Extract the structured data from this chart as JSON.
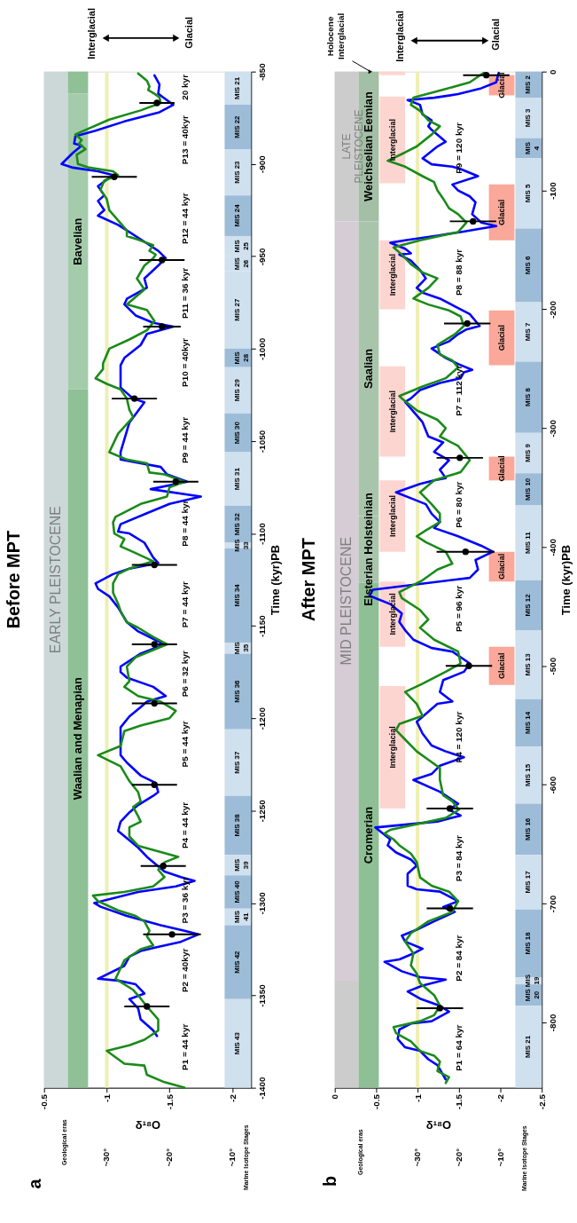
{
  "chart_data": [
    {
      "type": "line",
      "title": "Before MPT",
      "xlabel": "δ¹⁸O",
      "ylabel": "Time (kyr)PB",
      "ylim": [
        -1400,
        -850
      ],
      "yticks": [
        -1400,
        -1350,
        -1300,
        -1250,
        -1200,
        -1150,
        -1100,
        -1050,
        -1000,
        -950,
        -900,
        -850
      ],
      "xlim": [
        -0.5,
        -2.15
      ],
      "xticks": [
        -2,
        -1.5,
        -1,
        -0.5
      ],
      "x2lim": [
        40,
        7
      ],
      "x2ticks": [
        {
          "value": 10,
          "label": "~10°"
        },
        {
          "value": 20,
          "label": "~20°"
        },
        {
          "value": 30,
          "label": "~30°"
        }
      ],
      "grid": false,
      "marker": "none",
      "line_style": "solid",
      "series": [
        {
          "color": "#0000ff",
          "values": [
            -852,
            -857,
            -862,
            -864,
            -868,
            -872,
            -877,
            -882,
            -885,
            -889,
            -890,
            -894,
            -900,
            -902,
            -904,
            -906,
            -912,
            -917,
            -920,
            -925,
            -928,
            -933,
            -936,
            -943,
            -947,
            -951,
            -955,
            -962,
            -967,
            -973,
            -976,
            -982,
            -986,
            -988,
            -992,
            -998,
            -1005,
            -1009,
            -1021,
            -1027,
            -1029,
            -1040,
            -1056,
            -1060,
            -1064,
            -1068,
            -1072,
            -1076,
            -1080,
            -1084,
            -1089,
            -1095,
            -1099,
            -1100,
            -1105,
            -1113,
            -1116,
            -1119,
            -1122,
            -1127,
            -1130,
            -1134,
            -1140,
            -1148,
            -1153,
            -1157,
            -1160,
            -1165,
            -1172,
            -1175,
            -1178,
            -1183,
            -1188,
            -1191,
            -1194,
            -1199,
            -1205,
            -1212,
            -1220,
            -1224,
            -1231,
            -1235,
            -1240,
            -1242,
            -1247,
            -1251,
            -1256,
            -1261,
            -1266,
            -1270,
            -1275,
            -1283,
            -1286,
            -1288,
            -1291,
            -1294,
            -1300,
            -1302,
            -1307,
            -1312,
            -1315,
            -1317,
            -1321,
            -1324,
            -1326,
            -1329,
            -1334,
            -1341,
            -1342,
            -1344,
            -1349,
            -1352,
            -1357,
            -1363,
            -1369,
            -1372
          ],
          "x": [
            -1.38,
            -1.42,
            -1.41,
            -1.45,
            -1.53,
            -1.42,
            -1.14,
            -0.91,
            -0.75,
            -0.74,
            -0.8,
            -0.73,
            -0.64,
            -0.73,
            -0.93,
            -1.05,
            -0.93,
            -0.98,
            -0.93,
            -0.98,
            -0.93,
            -1.09,
            -1.16,
            -1.32,
            -1.41,
            -1.47,
            -1.41,
            -1.3,
            -1.32,
            -1.16,
            -1.14,
            -1.23,
            -1.37,
            -1.53,
            -1.32,
            -1.27,
            -1.14,
            -1.11,
            -1.11,
            -1.21,
            -1.3,
            -1.18,
            -1.11,
            -1.11,
            -1.43,
            -1.48,
            -1.64,
            -1.35,
            -1.75,
            -1.5,
            -1.32,
            -1.11,
            -1.09,
            -1.18,
            -1.3,
            -1.37,
            -1.41,
            -1.18,
            -1.05,
            -0.91,
            -0.93,
            -1.02,
            -1.09,
            -1.16,
            -1.25,
            -1.37,
            -1.46,
            -1.27,
            -1.11,
            -1.11,
            -1.16,
            -1.37,
            -1.47,
            -1.32,
            -1.27,
            -1.18,
            -1.11,
            -1.11,
            -1.11,
            -1.16,
            -1.27,
            -1.39,
            -1.41,
            -1.37,
            -1.25,
            -1.18,
            -1.11,
            -1.09,
            -1.18,
            -1.25,
            -1.32,
            -1.46,
            -1.59,
            -1.7,
            -1.55,
            -1.25,
            -0.9,
            -0.95,
            -1.16,
            -1.43,
            -1.62,
            -1.73,
            -1.59,
            -1.39,
            -1.27,
            -1.18,
            -1.14,
            -0.93,
            -1.09,
            -1.23,
            -1.3,
            -1.18,
            -1.25,
            -1.27,
            -1.37,
            -1.4
          ]
        },
        {
          "color": "#1a8a1a",
          "values": [
            -851,
            -855,
            -858,
            -860,
            -862,
            -864,
            -867,
            -871,
            -876,
            -884,
            -887,
            -889,
            -892,
            -895,
            -900,
            -902,
            -904,
            -906,
            -909,
            -914,
            -919,
            -925,
            -936,
            -939,
            -941,
            -944,
            -947,
            -949,
            -951,
            -955,
            -962,
            -968,
            -976,
            -979,
            -985,
            -990,
            -995,
            -1000,
            -1008,
            -1011,
            -1016,
            -1019,
            -1022,
            -1027,
            -1033,
            -1037,
            -1046,
            -1056,
            -1060,
            -1062,
            -1067,
            -1068,
            -1072,
            -1075,
            -1080,
            -1084,
            -1091,
            -1094,
            -1100,
            -1103,
            -1107,
            -1110,
            -1115,
            -1119,
            -1122,
            -1127,
            -1132,
            -1138,
            -1142,
            -1148,
            -1151,
            -1156,
            -1160,
            -1167,
            -1172,
            -1180,
            -1183,
            -1188,
            -1191,
            -1196,
            -1200,
            -1204,
            -1207,
            -1215,
            -1220,
            -1226,
            -1234,
            -1240,
            -1245,
            -1248,
            -1253,
            -1256,
            -1259,
            -1264,
            -1269,
            -1272,
            -1275,
            -1278,
            -1282,
            -1286,
            -1291,
            -1294,
            -1296,
            -1299,
            -1304,
            -1307,
            -1310,
            -1315,
            -1318,
            -1323,
            -1325,
            -1331,
            -1341,
            -1347,
            -1350,
            -1356,
            -1363,
            -1369,
            -1374,
            -1377,
            -1380,
            -1387,
            -1388,
            -1393,
            -1397,
            -1400
          ],
          "x": [
            -1.25,
            -1.32,
            -1.34,
            -1.33,
            -1.38,
            -1.42,
            -1.43,
            -1.27,
            -1.02,
            -0.75,
            -0.8,
            -0.78,
            -0.83,
            -0.76,
            -0.77,
            -0.86,
            -1.05,
            -1.09,
            -0.98,
            -0.95,
            -1.0,
            -1.02,
            -1.16,
            -1.16,
            -1.25,
            -1.37,
            -1.34,
            -1.39,
            -1.37,
            -1.3,
            -1.24,
            -1.3,
            -1.16,
            -1.32,
            -1.38,
            -1.32,
            -1.18,
            -1.02,
            -0.97,
            -0.97,
            -0.91,
            -1.0,
            -1.11,
            -1.16,
            -1.18,
            -1.21,
            -1.09,
            -1.02,
            -1.16,
            -1.32,
            -1.34,
            -1.46,
            -1.62,
            -1.5,
            -1.48,
            -1.27,
            -1.07,
            -1.05,
            -1.06,
            -1.14,
            -1.11,
            -1.21,
            -1.37,
            -1.18,
            -1.09,
            -1.05,
            -1.05,
            -1.09,
            -1.11,
            -1.16,
            -1.25,
            -1.37,
            -1.48,
            -1.23,
            -1.16,
            -1.18,
            -1.14,
            -1.25,
            -1.43,
            -1.55,
            -1.5,
            -1.27,
            -1.14,
            -1.11,
            -0.93,
            -1.11,
            -1.18,
            -1.25,
            -1.27,
            -1.21,
            -1.25,
            -1.27,
            -1.18,
            -1.18,
            -1.25,
            -1.41,
            -1.57,
            -1.46,
            -1.41,
            -1.46,
            -1.37,
            -1.14,
            -0.89,
            -0.93,
            -1.09,
            -1.23,
            -1.3,
            -1.34,
            -1.32,
            -1.37,
            -1.27,
            -1.14,
            -1.07,
            -1.21,
            -1.25,
            -1.32,
            -1.41,
            -1.41,
            -1.3,
            -1.18,
            -1.0,
            -1.14,
            -1.3,
            -1.32,
            -1.46,
            -1.62
          ]
        },
        {
          "type": "scatter",
          "marker": "circle",
          "color": "#000000",
          "values": [
            -867,
            -907,
            -952,
            -988,
            -1027,
            -1072,
            -1117,
            -1160,
            -1192,
            -1236,
            -1280,
            -1317,
            -1356
          ],
          "x": [
            -1.4,
            -1.06,
            -1.44,
            -1.44,
            -1.22,
            -1.55,
            -1.38,
            -1.38,
            -1.38,
            -1.38,
            -1.45,
            -1.52,
            -1.32
          ],
          "xerrors": [
            0.14,
            0.18,
            0.18,
            0.15,
            0.18,
            0.18,
            0.18,
            0.18,
            0.18,
            0.18,
            0.18,
            0.23,
            0.18
          ]
        }
      ],
      "ref_lines": [
        {
          "axis": "x",
          "value": -1,
          "color": "#eeeeb4"
        }
      ],
      "bands": [
        {
          "axis": "y",
          "from": -850,
          "to": -1400,
          "label": "EARLY PLEISTOCENE",
          "color": "#ccd8d8"
        },
        {
          "axis": "y",
          "from": -850,
          "to": -862,
          "label": null,
          "color": "#8fc096"
        },
        {
          "axis": "y",
          "from": -862,
          "to": -1022,
          "label": "Bavelian",
          "color": "#a4cbaa"
        },
        {
          "axis": "y",
          "from": -1022,
          "to": -1400,
          "label": "Waalian and Menapian",
          "color": "#8fc096"
        },
        {
          "axis": "y",
          "from": -850,
          "to": -868,
          "label": "MIS 21",
          "color": "#cfe0ee"
        },
        {
          "axis": "y",
          "from": -868,
          "to": -892,
          "label": "MIS 22",
          "color": "#9dbcd8"
        },
        {
          "axis": "y",
          "from": -892,
          "to": -917,
          "label": "MIS 23",
          "color": "#cfe0ee"
        },
        {
          "axis": "y",
          "from": -917,
          "to": -939,
          "label": "MIS 24",
          "color": "#9dbcd8"
        },
        {
          "axis": "y",
          "from": -939,
          "to": -950,
          "label": "MIS 25",
          "color": "#cfe0ee"
        },
        {
          "axis": "y",
          "from": -950,
          "to": -958,
          "label": "MIS 26",
          "color": "#cfe0ee"
        },
        {
          "axis": "y",
          "from": -958,
          "to": -1000,
          "label": "MIS 27",
          "color": "#cfe0ee"
        },
        {
          "axis": "y",
          "from": -1000,
          "to": -1010,
          "label": "MIS 28",
          "color": "#9dbcd8"
        },
        {
          "axis": "y",
          "from": -1010,
          "to": -1035,
          "label": "MIS 29",
          "color": "#cfe0ee"
        },
        {
          "axis": "y",
          "from": -1035,
          "to": -1056,
          "label": "MIS 30",
          "color": "#9dbcd8"
        },
        {
          "axis": "y",
          "from": -1056,
          "to": -1085,
          "label": "MIS 31",
          "color": "#cfe0ee"
        },
        {
          "axis": "y",
          "from": -1085,
          "to": -1105,
          "label": "MIS 32",
          "color": "#9dbcd8"
        },
        {
          "axis": "y",
          "from": -1105,
          "to": -1108,
          "label": "MIS 33",
          "color": "#cfe0ee"
        },
        {
          "axis": "y",
          "from": -1108,
          "to": -1159,
          "label": "MIS 34",
          "color": "#9dbcd8"
        },
        {
          "axis": "y",
          "from": -1159,
          "to": -1165,
          "label": "MIS 35",
          "color": "#cfe0ee"
        },
        {
          "axis": "y",
          "from": -1165,
          "to": -1206,
          "label": "MIS 36",
          "color": "#9dbcd8"
        },
        {
          "axis": "y",
          "from": -1206,
          "to": -1242,
          "label": "MIS 37",
          "color": "#cfe0ee"
        },
        {
          "axis": "y",
          "from": -1242,
          "to": -1274,
          "label": "MIS 38",
          "color": "#9dbcd8"
        },
        {
          "axis": "y",
          "from": -1274,
          "to": -1285,
          "label": "MIS 39",
          "color": "#cfe0ee"
        },
        {
          "axis": "y",
          "from": -1285,
          "to": -1303,
          "label": "MIS 40",
          "color": "#9dbcd8"
        },
        {
          "axis": "y",
          "from": -1303,
          "to": -1312,
          "label": "MIS 41",
          "color": "#cfe0ee"
        },
        {
          "axis": "y",
          "from": -1312,
          "to": -1352,
          "label": "MIS 42",
          "color": "#9dbcd8"
        },
        {
          "axis": "y",
          "from": -1352,
          "to": -1400,
          "label": "MIS 43",
          "color": "#cfe0ee"
        }
      ],
      "annotations": [
        "a",
        "Geological eras",
        "Marine Isotope Stages",
        "Interglacial",
        "Glacial",
        "20 kyr",
        "P13 = 40kyr",
        "P12 = 44 kyr",
        "P11 = 36 kyr",
        "P10 = 40kyr",
        "P9 = 44 kyr",
        "P8 = 44 kyr",
        "P7 = 44 kyr",
        "P6 = 32 kyr",
        "P5 = 44 kyr",
        "P4 = 44 kyr",
        "P3 = 36 kyr",
        "P2 = 40kyr",
        "P1 = 44 kyr"
      ]
    },
    {
      "type": "line",
      "title": "After MPT",
      "xlabel": "δ¹⁸O",
      "ylabel": "Time (kyr)PB",
      "ylim": [
        -855,
        0
      ],
      "yticks": [
        -800,
        -700,
        -600,
        -500,
        -400,
        -300,
        -200,
        -100,
        0
      ],
      "xlim": [
        0,
        -2.5
      ],
      "xticks": [
        -2.5,
        -2,
        -1.5,
        -1,
        -0.5,
        0
      ],
      "x2lim": [
        50,
        0
      ],
      "x2ticks": [
        {
          "value": 10,
          "label": "~10°"
        },
        {
          "value": 20,
          "label": "~20°"
        },
        {
          "value": 30,
          "label": "~30°"
        }
      ],
      "grid": false,
      "marker": "none",
      "line_style": "solid",
      "series": [
        {
          "color": "#0000ff",
          "values": [
            -1,
            -9,
            -14,
            -19,
            -22,
            -24,
            -28,
            -36,
            -41,
            -46,
            -49,
            -59,
            -63,
            -73,
            -78,
            -80,
            -82,
            -88,
            -95,
            -100,
            -105,
            -110,
            -120,
            -127,
            -130,
            -132,
            -135,
            -138,
            -142,
            -144,
            -149,
            -153,
            -154,
            -159,
            -167,
            -174,
            -182,
            -186,
            -191,
            -199,
            -204,
            -214,
            -217,
            -221,
            -227,
            -233,
            -241,
            -246,
            -251,
            -253,
            -258,
            -262,
            -268,
            -275,
            -278,
            -295,
            -307,
            -312,
            -320,
            -327,
            -335,
            -342,
            -344,
            -347,
            -354,
            -359,
            -364,
            -372,
            -379,
            -384,
            -391,
            -399,
            -404,
            -411,
            -419,
            -426,
            -436,
            -441,
            -448,
            -456,
            -463,
            -470,
            -478,
            -485,
            -488,
            -498,
            -505,
            -512,
            -522,
            -530,
            -532,
            -547,
            -557,
            -567,
            -572,
            -577,
            -584,
            -591,
            -596,
            -606,
            -616,
            -621,
            -626,
            -631,
            -636,
            -646,
            -651,
            -657,
            -663,
            -668,
            -675,
            -685,
            -688,
            -690,
            -698,
            -703,
            -707,
            -715,
            -722,
            -727,
            -732,
            -738,
            -742,
            -747,
            -749,
            -757,
            -762,
            -764,
            -769,
            -774,
            -780,
            -786,
            -791,
            -799,
            -801,
            -806,
            -814,
            -821,
            -824,
            -831,
            -836,
            -848
          ],
          "x": [
            -1.98,
            -1.95,
            -1.77,
            -1.49,
            -1.2,
            -0.88,
            -1.03,
            -1.06,
            -1.17,
            -1.13,
            -1.17,
            -1.34,
            -1.24,
            -1.06,
            -1.17,
            -1.42,
            -1.52,
            -1.73,
            -1.42,
            -1.49,
            -1.63,
            -1.7,
            -1.66,
            -1.77,
            -1.95,
            -1.77,
            -1.52,
            -1.24,
            -0.85,
            -0.67,
            -0.85,
            -0.92,
            -0.78,
            -0.92,
            -1.03,
            -1.1,
            -0.99,
            -1.06,
            -1.27,
            -1.49,
            -1.63,
            -1.75,
            -1.59,
            -1.49,
            -1.38,
            -1.17,
            -1.34,
            -1.49,
            -1.66,
            -1.56,
            -1.52,
            -1.27,
            -1.03,
            -0.92,
            -0.85,
            -1.06,
            -1.13,
            -1.31,
            -1.2,
            -1.38,
            -1.27,
            -1.34,
            -1.2,
            -1.03,
            -0.74,
            -0.92,
            -1.1,
            -1.17,
            -1.27,
            -1.2,
            -1.49,
            -1.77,
            -1.91,
            -1.7,
            -1.73,
            -1.63,
            -0.46,
            -0.42,
            -0.67,
            -0.81,
            -0.78,
            -0.85,
            -0.95,
            -1.17,
            -1.42,
            -1.63,
            -1.56,
            -1.31,
            -1.27,
            -1.42,
            -1.24,
            -0.99,
            -1.06,
            -1.17,
            -1.34,
            -1.56,
            -1.27,
            -1.17,
            -0.95,
            -1.27,
            -1.49,
            -1.38,
            -1.52,
            -1.24,
            -0.49,
            -0.67,
            -0.64,
            -0.74,
            -0.92,
            -0.99,
            -0.88,
            -0.88,
            -0.99,
            -1.27,
            -1.49,
            -1.31,
            -1.45,
            -1.2,
            -0.99,
            -0.81,
            -0.85,
            -1.06,
            -0.95,
            -0.78,
            -0.6,
            -0.81,
            -1.03,
            -1.34,
            -1.06,
            -0.88,
            -1.03,
            -1.27,
            -1.38,
            -1.17,
            -0.92,
            -0.78,
            -0.76,
            -0.85,
            -1.03,
            -1.13,
            -1.24,
            -1.34
          ]
        },
        {
          "color": "#1a8a1a",
          "values": [
            -1,
            -9,
            -16,
            -22,
            -28,
            -33,
            -41,
            -46,
            -53,
            -63,
            -68,
            -75,
            -80,
            -88,
            -93,
            -100,
            -107,
            -115,
            -120,
            -127,
            -135,
            -142,
            -148,
            -154,
            -162,
            -169,
            -174,
            -182,
            -191,
            -196,
            -201,
            -206,
            -214,
            -221,
            -230,
            -238,
            -243,
            -249,
            -258,
            -265,
            -273,
            -275,
            -285,
            -293,
            -300,
            -307,
            -315,
            -327,
            -337,
            -344,
            -354,
            -364,
            -372,
            -379,
            -386,
            -391,
            -396,
            -404,
            -414,
            -419,
            -428,
            -438,
            -443,
            -453,
            -461,
            -468,
            -478,
            -488,
            -498,
            -505,
            -515,
            -522,
            -532,
            -542,
            -549,
            -554,
            -562,
            -572,
            -579,
            -586,
            -596,
            -609,
            -614,
            -621,
            -628,
            -638,
            -641,
            -646,
            -651,
            -658,
            -665,
            -678,
            -685,
            -690,
            -698,
            -707,
            -715,
            -725,
            -732,
            -742,
            -752,
            -759,
            -767,
            -777,
            -786,
            -794,
            -799,
            -804,
            -809,
            -816,
            -824,
            -828,
            -833,
            -841,
            -846,
            -851
          ],
          "x": [
            -1.8,
            -1.63,
            -1.27,
            -0.95,
            -0.92,
            -1.03,
            -1.13,
            -1.27,
            -1.17,
            -0.99,
            -0.85,
            -0.64,
            -0.85,
            -1.06,
            -1.2,
            -1.24,
            -1.31,
            -1.38,
            -1.49,
            -1.59,
            -1.49,
            -1.03,
            -0.71,
            -0.81,
            -0.92,
            -1.06,
            -1.24,
            -1.13,
            -0.95,
            -1.13,
            -1.38,
            -1.52,
            -1.56,
            -1.45,
            -1.24,
            -1.27,
            -1.42,
            -1.49,
            -1.34,
            -1.06,
            -0.78,
            -0.81,
            -0.99,
            -1.24,
            -1.34,
            -1.27,
            -1.49,
            -1.63,
            -1.52,
            -1.2,
            -1.03,
            -1.17,
            -1.27,
            -1.27,
            -1.1,
            -0.99,
            -1.1,
            -1.34,
            -1.42,
            -1.24,
            -1.06,
            -0.78,
            -0.81,
            -1.03,
            -1.13,
            -1.03,
            -1.2,
            -1.49,
            -1.52,
            -1.34,
            -1.06,
            -0.85,
            -0.99,
            -1.06,
            -0.78,
            -0.74,
            -0.85,
            -0.99,
            -1.13,
            -1.27,
            -1.27,
            -1.31,
            -1.42,
            -1.5,
            -1.34,
            -0.67,
            -0.6,
            -0.71,
            -0.78,
            -0.92,
            -0.99,
            -1.03,
            -1.17,
            -1.38,
            -1.49,
            -1.42,
            -1.13,
            -0.92,
            -0.85,
            -0.95,
            -0.92,
            -0.99,
            -1.03,
            -1.2,
            -1.27,
            -1.2,
            -1.03,
            -0.71,
            -0.74,
            -0.92,
            -1.03,
            -1.2,
            -1.27,
            -1.24,
            -1.38,
            -1.34
          ]
        },
        {
          "type": "scatter",
          "marker": "circle",
          "color": "#000000",
          "values": [
            -3,
            -126,
            -212,
            -325,
            -404,
            -500,
            -620,
            -704,
            -788
          ],
          "x": [
            -1.83,
            -1.67,
            -1.6,
            -1.51,
            -1.58,
            -1.62,
            -1.39,
            -1.39,
            -1.27
          ],
          "xerrors": [
            0.28,
            0.28,
            0.28,
            0.28,
            0.35,
            0.28,
            0.28,
            0.28,
            0.28
          ]
        }
      ],
      "ref_lines": [
        {
          "axis": "x",
          "value": -1,
          "color": "#eeeeb4"
        }
      ],
      "bands": [
        {
          "axis": "y",
          "from": 0,
          "to": -126,
          "label": "LATE PLEISTOCENE",
          "color": "#cccccc"
        },
        {
          "axis": "y",
          "from": -126,
          "to": -765,
          "label": "MID PLEISTOCENE",
          "color": "#d5ccd6"
        },
        {
          "axis": "y",
          "from": -765,
          "to": -855,
          "label": null,
          "color": "#cccccc"
        },
        {
          "axis": "y",
          "from": 0,
          "to": -126,
          "label": "Weichselian Eemian",
          "color": "#a3bfa5"
        },
        {
          "axis": "y",
          "from": -126,
          "to": -374,
          "label": "Saalian",
          "color": "#a8c5ab"
        },
        {
          "axis": "y",
          "from": -374,
          "to": -430,
          "label": "Elsterian Holsteinian",
          "color": "#a8c5ab"
        },
        {
          "axis": "y",
          "from": -430,
          "to": -855,
          "label": "Cromerian",
          "color": "#8fbf94"
        },
        {
          "axis": "y",
          "from": 0,
          "to": -3,
          "label": null,
          "color": "#fdd5d0"
        },
        {
          "axis": "y",
          "from": -21,
          "to": -94,
          "label": "Interglacial",
          "color": "#fdd5d0"
        },
        {
          "axis": "y",
          "from": -142,
          "to": -200,
          "label": "Interglacial",
          "color": "#fdd5d0"
        },
        {
          "axis": "y",
          "from": -248,
          "to": -324,
          "label": "Interglacial",
          "color": "#fdd5d0"
        },
        {
          "axis": "y",
          "from": -344,
          "to": -404,
          "label": "Interglacial",
          "color": "#fdd5d0"
        },
        {
          "axis": "y",
          "from": -429,
          "to": -484,
          "label": "Interglacial",
          "color": "#fdd5d0"
        },
        {
          "axis": "y",
          "from": -517,
          "to": -620,
          "label": "Interglacial",
          "color": "#fdd5d0"
        },
        {
          "axis": "y",
          "from": -3,
          "to": -20,
          "label": "Glacial",
          "color": "#f9a89a"
        },
        {
          "axis": "y",
          "from": -95,
          "to": -142,
          "label": "Glacial",
          "color": "#f9a89a"
        },
        {
          "axis": "y",
          "from": -201,
          "to": -247,
          "label": "Glacial",
          "color": "#f9a89a"
        },
        {
          "axis": "y",
          "from": -324,
          "to": -344,
          "label": "Glacial",
          "color": "#f9a89a"
        },
        {
          "axis": "y",
          "from": -404,
          "to": -429,
          "label": "Glacial",
          "color": "#f9a89a"
        },
        {
          "axis": "y",
          "from": -484,
          "to": -516,
          "label": "Glacial",
          "color": "#f9a89a"
        },
        {
          "axis": "y",
          "from": 0,
          "to": -22,
          "label": "MIS 2",
          "color": "#9dbcd8"
        },
        {
          "axis": "y",
          "from": -22,
          "to": -56,
          "label": "MIS 3",
          "color": "#cfe0ee"
        },
        {
          "axis": "y",
          "from": -56,
          "to": -73,
          "label": "MIS 4",
          "color": "#9dbcd8"
        },
        {
          "axis": "y",
          "from": -73,
          "to": -132,
          "label": "MIS 5",
          "color": "#cfe0ee"
        },
        {
          "axis": "y",
          "from": -132,
          "to": -194,
          "label": "MIS 6",
          "color": "#9dbcd8"
        },
        {
          "axis": "y",
          "from": -194,
          "to": -244,
          "label": "MIS 7",
          "color": "#cfe0ee"
        },
        {
          "axis": "y",
          "from": -244,
          "to": -304,
          "label": "MIS 8",
          "color": "#9dbcd8"
        },
        {
          "axis": "y",
          "from": -304,
          "to": -338,
          "label": "MIS 9",
          "color": "#cfe0ee"
        },
        {
          "axis": "y",
          "from": -338,
          "to": -365,
          "label": "MIS 10",
          "color": "#9dbcd8"
        },
        {
          "axis": "y",
          "from": -365,
          "to": -428,
          "label": "MIS 11",
          "color": "#cfe0ee"
        },
        {
          "axis": "y",
          "from": -428,
          "to": -470,
          "label": "MIS 12",
          "color": "#9dbcd8"
        },
        {
          "axis": "y",
          "from": -470,
          "to": -528,
          "label": "MIS 13",
          "color": "#cfe0ee"
        },
        {
          "axis": "y",
          "from": -528,
          "to": -568,
          "label": "MIS 14",
          "color": "#9dbcd8"
        },
        {
          "axis": "y",
          "from": -568,
          "to": -616,
          "label": "MIS 15",
          "color": "#cfe0ee"
        },
        {
          "axis": "y",
          "from": -616,
          "to": -659,
          "label": "MIS 16",
          "color": "#9dbcd8"
        },
        {
          "axis": "y",
          "from": -659,
          "to": -705,
          "label": "MIS 17",
          "color": "#cfe0ee"
        },
        {
          "axis": "y",
          "from": -705,
          "to": -762,
          "label": "MIS 18",
          "color": "#9dbcd8"
        },
        {
          "axis": "y",
          "from": -762,
          "to": -768,
          "label": "MIS 19",
          "color": "#cfe0ee"
        },
        {
          "axis": "y",
          "from": -768,
          "to": -786,
          "label": "MIS 20",
          "color": "#9dbcd8"
        },
        {
          "axis": "y",
          "from": -786,
          "to": -855,
          "label": "MIS 21",
          "color": "#cfe0ee"
        }
      ],
      "annotations": [
        "b",
        "Geological eras",
        "Marine Isotope Stages",
        {
          "text": "Holocene Interglacial",
          "x": -0.43,
          "y": 0
        },
        "Interglacial",
        "Glacial",
        "P9 = 120 kyr",
        "P8 = 88 kyr",
        "P7 = 112 kyr",
        "P6 = 80 kyr",
        "P5 = 96 kyr",
        "P4 = 120 kyr",
        "P3 = 84 kyr",
        "P2 = 84 kyr",
        "P1 = 64 kyr"
      ]
    }
  ]
}
